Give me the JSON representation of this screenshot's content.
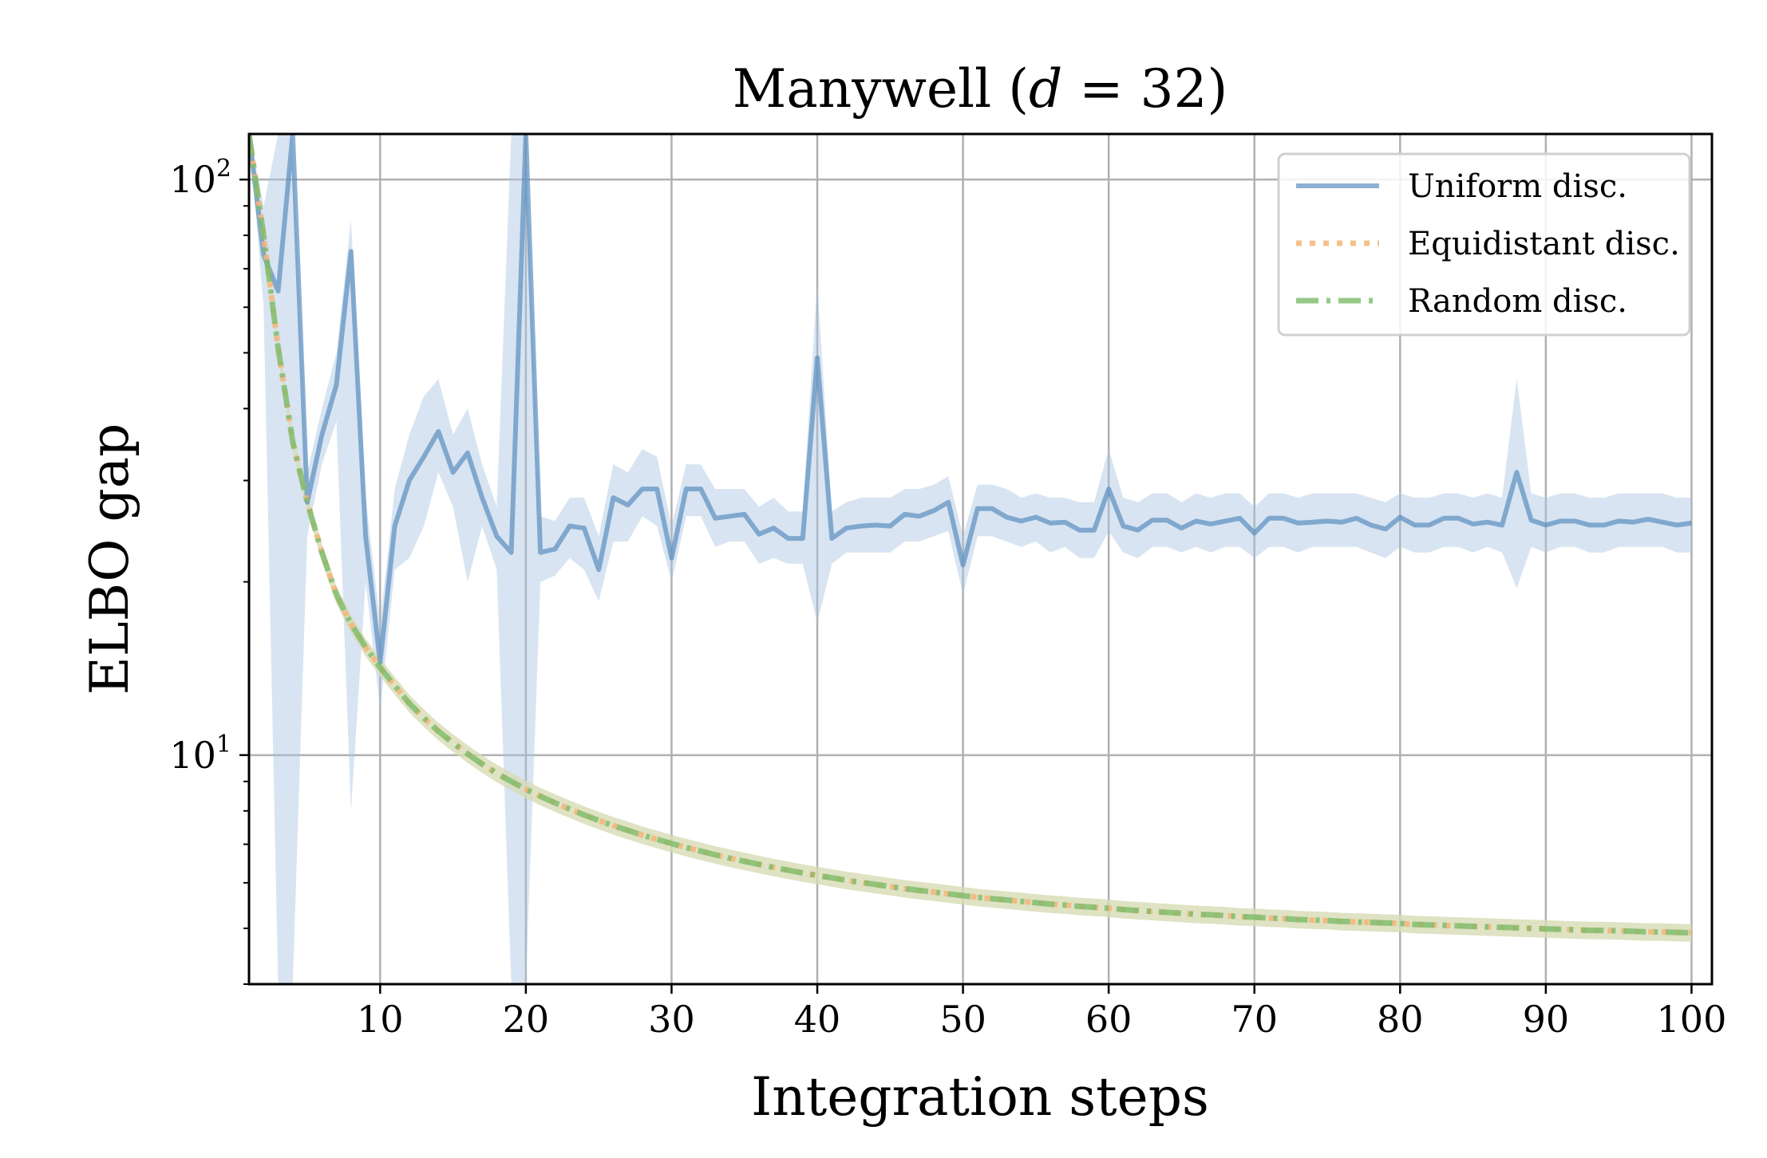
{
  "chart_data": {
    "type": "line",
    "title": "Manywell (d = 32)",
    "title_parts": {
      "prefix": "Manywell (",
      "var": "d",
      "eq": " = ",
      "num": "32",
      "suffix": ")"
    },
    "xlabel": "Integration steps",
    "ylabel": "ELBO gap",
    "xlim": [
      1,
      101.4
    ],
    "ylim": [
      4.0,
      120.0
    ],
    "y_scale": "log",
    "x_ticks": [
      10,
      20,
      30,
      40,
      50,
      60,
      70,
      80,
      90,
      100
    ],
    "x_tick_labels": [
      "10",
      "20",
      "30",
      "40",
      "50",
      "60",
      "70",
      "80",
      "90",
      "100"
    ],
    "y_ticks": [
      10,
      100
    ],
    "y_tick_labels": [
      {
        "base": "10",
        "exp": "1"
      },
      {
        "base": "10",
        "exp": "2"
      }
    ],
    "grid": true,
    "legend_position": "top-right",
    "series": [
      {
        "name": "Uniform disc.",
        "color": "#5b8fbf",
        "band_color": "#a9c4e0",
        "style": "solid",
        "x": [
          1,
          2,
          3,
          4,
          5,
          6,
          7,
          8,
          9,
          10,
          11,
          12,
          13,
          14,
          15,
          16,
          17,
          18,
          19,
          20,
          21,
          22,
          23,
          24,
          25,
          26,
          27,
          28,
          29,
          30,
          31,
          32,
          33,
          34,
          35,
          36,
          37,
          38,
          39,
          40,
          41,
          42,
          43,
          44,
          45,
          46,
          47,
          48,
          49,
          50,
          51,
          52,
          53,
          54,
          55,
          56,
          57,
          58,
          59,
          60,
          61,
          62,
          63,
          64,
          65,
          66,
          67,
          68,
          69,
          70,
          71,
          72,
          73,
          74,
          75,
          76,
          77,
          78,
          79,
          80,
          81,
          82,
          83,
          84,
          85,
          86,
          87,
          88,
          89,
          90,
          91,
          92,
          93,
          94,
          95,
          96,
          97,
          98,
          99,
          100
        ],
        "y": [
          120,
          74,
          64,
          125,
          27.5,
          36,
          44,
          75,
          24,
          14.5,
          25,
          30,
          33,
          36.5,
          31,
          33.5,
          28,
          24,
          22.5,
          130,
          22.5,
          22.8,
          25,
          24.8,
          21,
          28,
          27.2,
          29,
          29,
          22,
          29,
          29,
          25.8,
          26,
          26.2,
          24.2,
          24.8,
          23.8,
          23.8,
          49,
          23.8,
          24.8,
          25,
          25.1,
          25,
          26.2,
          26,
          26.6,
          27.5,
          21.4,
          26.8,
          26.8,
          25.9,
          25.5,
          25.9,
          25.3,
          25.4,
          24.6,
          24.6,
          29,
          25,
          24.6,
          25.6,
          25.6,
          24.8,
          25.5,
          25.2,
          25.5,
          25.8,
          24.3,
          25.8,
          25.8,
          25.3,
          25.4,
          25.5,
          25.4,
          25.8,
          25.1,
          24.7,
          25.9,
          25.1,
          25.1,
          25.8,
          25.8,
          25.2,
          25.4,
          25.1,
          31,
          25.6,
          25.1,
          25.5,
          25.5,
          25.1,
          25.1,
          25.5,
          25.4,
          25.7,
          25.4,
          25.1,
          25.3
        ],
        "y_lower": [
          120,
          60,
          4.0,
          4.0,
          24,
          32,
          38,
          8,
          20,
          12,
          21,
          22,
          25,
          31,
          27,
          20,
          25,
          21,
          4.0,
          4.0,
          20,
          20.5,
          22,
          21,
          18.5,
          23.5,
          23.5,
          26,
          25,
          20,
          26,
          26,
          23,
          23.5,
          23.5,
          21.5,
          22,
          21.5,
          21.5,
          17,
          21.5,
          22.5,
          22.5,
          22.5,
          22.5,
          23.5,
          23.5,
          24,
          24.5,
          19,
          24,
          24,
          23.5,
          23,
          23.5,
          22.5,
          23,
          22,
          22,
          24.5,
          22.5,
          22,
          23,
          23,
          22.5,
          23,
          22.5,
          23,
          23,
          22,
          23,
          23,
          22.5,
          23,
          23,
          23,
          23,
          22.5,
          22,
          23,
          22.5,
          22.5,
          23,
          23,
          22.5,
          23,
          22.5,
          19.5,
          23,
          22.5,
          23,
          23,
          22.5,
          22.5,
          23,
          23,
          23,
          23,
          22.5,
          22.5
        ],
        "y_upper": [
          120,
          90,
          120,
          120,
          31,
          40,
          50,
          85,
          28,
          17,
          29,
          36,
          42,
          45,
          36,
          40,
          32,
          27,
          120,
          120,
          26,
          25.5,
          28,
          28,
          24,
          32,
          31,
          34,
          33,
          25,
          32,
          32,
          29,
          29,
          29,
          27,
          28,
          26.5,
          26.5,
          66,
          26.5,
          27.5,
          28,
          28,
          28,
          29,
          29,
          29.5,
          30.5,
          24,
          29.5,
          29.5,
          29,
          28,
          28.5,
          28,
          28,
          27.5,
          27.5,
          34,
          28,
          27.5,
          28.5,
          28.5,
          27.5,
          28.5,
          28,
          28.5,
          28.5,
          27,
          28.5,
          28.5,
          28,
          28.5,
          28.5,
          28.5,
          28.5,
          28,
          27.5,
          28.5,
          28,
          28,
          28.5,
          28.5,
          28,
          28.5,
          28,
          45,
          28.5,
          28,
          28.5,
          28.5,
          28,
          28,
          28.5,
          28.5,
          28.5,
          28.5,
          28,
          28
        ]
      },
      {
        "name": "Equidistant disc.",
        "color": "#f5b579",
        "band_color": "#fbd7b4",
        "style": "dotted",
        "x": [
          1,
          2,
          3,
          4,
          5,
          6,
          7,
          8,
          9,
          10,
          11,
          12,
          13,
          14,
          15,
          16,
          17,
          18,
          19,
          20,
          21,
          22,
          23,
          24,
          25,
          26,
          27,
          28,
          29,
          30,
          31,
          32,
          33,
          34,
          35,
          36,
          37,
          38,
          39,
          40,
          41,
          42,
          43,
          44,
          45,
          46,
          47,
          48,
          49,
          50,
          51,
          52,
          53,
          54,
          55,
          56,
          57,
          58,
          59,
          60,
          61,
          62,
          63,
          64,
          65,
          66,
          67,
          68,
          69,
          70,
          71,
          72,
          73,
          74,
          75,
          76,
          77,
          78,
          79,
          80,
          81,
          82,
          83,
          84,
          85,
          86,
          87,
          88,
          89,
          90,
          91,
          92,
          93,
          94,
          95,
          96,
          97,
          98,
          99,
          100
        ],
        "y": [
          120,
          80,
          51,
          35,
          27.5,
          22.5,
          19,
          16.9,
          15.4,
          14.2,
          13.2,
          12.3,
          11.6,
          11.0,
          10.5,
          10.05,
          9.65,
          9.3,
          9.0,
          8.72,
          8.48,
          8.26,
          8.06,
          7.87,
          7.7,
          7.54,
          7.4,
          7.26,
          7.14,
          7.02,
          6.91,
          6.81,
          6.71,
          6.62,
          6.54,
          6.46,
          6.38,
          6.31,
          6.24,
          6.18,
          6.12,
          6.06,
          6.01,
          5.96,
          5.91,
          5.86,
          5.82,
          5.78,
          5.74,
          5.7,
          5.66,
          5.63,
          5.6,
          5.57,
          5.54,
          5.51,
          5.49,
          5.46,
          5.44,
          5.42,
          5.39,
          5.37,
          5.35,
          5.33,
          5.31,
          5.29,
          5.28,
          5.26,
          5.24,
          5.23,
          5.21,
          5.2,
          5.18,
          5.17,
          5.16,
          5.14,
          5.13,
          5.12,
          5.11,
          5.1,
          5.08,
          5.07,
          5.06,
          5.05,
          5.04,
          5.03,
          5.02,
          5.01,
          5.0,
          4.99,
          4.98,
          4.97,
          4.96,
          4.96,
          4.95,
          4.94,
          4.93,
          4.93,
          4.92,
          4.91
        ]
      },
      {
        "name": "Random disc.",
        "color": "#7cbb6a",
        "band_color": "#c6dcb5",
        "style": "dashdot",
        "x": [
          1,
          2,
          3,
          4,
          5,
          6,
          7,
          8,
          9,
          10,
          11,
          12,
          13,
          14,
          15,
          16,
          17,
          18,
          19,
          20,
          21,
          22,
          23,
          24,
          25,
          26,
          27,
          28,
          29,
          30,
          31,
          32,
          33,
          34,
          35,
          36,
          37,
          38,
          39,
          40,
          41,
          42,
          43,
          44,
          45,
          46,
          47,
          48,
          49,
          50,
          51,
          52,
          53,
          54,
          55,
          56,
          57,
          58,
          59,
          60,
          61,
          62,
          63,
          64,
          65,
          66,
          67,
          68,
          69,
          70,
          71,
          72,
          73,
          74,
          75,
          76,
          77,
          78,
          79,
          80,
          81,
          82,
          83,
          84,
          85,
          86,
          87,
          88,
          89,
          90,
          91,
          92,
          93,
          94,
          95,
          96,
          97,
          98,
          99,
          100
        ],
        "y": [
          120,
          80,
          51,
          35,
          27.5,
          22.5,
          19,
          16.9,
          15.4,
          14.2,
          13.2,
          12.3,
          11.6,
          11.0,
          10.5,
          10.05,
          9.65,
          9.3,
          9.0,
          8.72,
          8.48,
          8.26,
          8.06,
          7.87,
          7.7,
          7.54,
          7.4,
          7.26,
          7.14,
          7.02,
          6.91,
          6.81,
          6.71,
          6.62,
          6.54,
          6.46,
          6.38,
          6.31,
          6.24,
          6.18,
          6.12,
          6.06,
          6.01,
          5.96,
          5.91,
          5.86,
          5.82,
          5.78,
          5.74,
          5.7,
          5.66,
          5.63,
          5.6,
          5.57,
          5.54,
          5.51,
          5.49,
          5.46,
          5.44,
          5.42,
          5.39,
          5.37,
          5.35,
          5.33,
          5.31,
          5.29,
          5.28,
          5.26,
          5.24,
          5.23,
          5.21,
          5.2,
          5.18,
          5.17,
          5.16,
          5.14,
          5.13,
          5.12,
          5.11,
          5.1,
          5.08,
          5.07,
          5.06,
          5.05,
          5.04,
          5.03,
          5.02,
          5.01,
          5.0,
          4.99,
          4.98,
          4.97,
          4.96,
          4.96,
          4.95,
          4.94,
          4.93,
          4.93,
          4.92,
          4.91
        ]
      }
    ]
  }
}
